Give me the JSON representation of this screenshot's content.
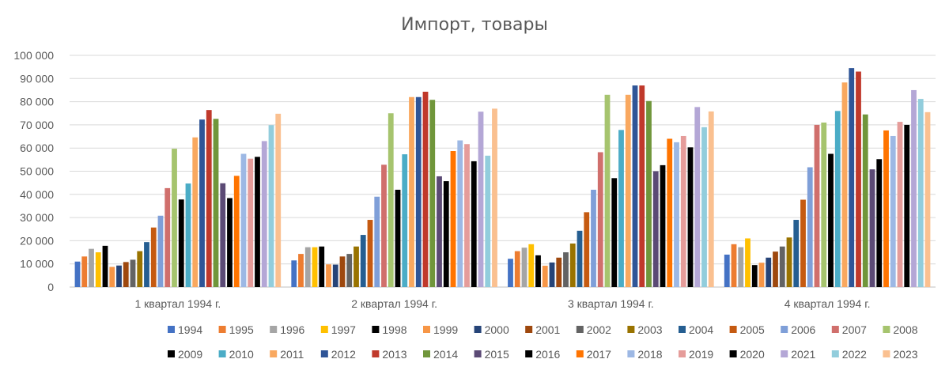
{
  "chart_data": {
    "type": "bar",
    "title": "Импорт, товары",
    "xlabel": "",
    "ylabel": "",
    "ylim": [
      0,
      100000
    ],
    "yticks": [
      0,
      10000,
      20000,
      30000,
      40000,
      50000,
      60000,
      70000,
      80000,
      90000,
      100000
    ],
    "ytick_labels": [
      "0",
      "10 000",
      "20 000",
      "30 000",
      "40 000",
      "50 000",
      "60 000",
      "70 000",
      "80 000",
      "90 000",
      "100 000"
    ],
    "grid": true,
    "legend_position": "bottom",
    "categories": [
      "1 квартал 1994 г.",
      "2 квартал 1994 г.",
      "3 квартал 1994 г.",
      "4 квартал 1994 г."
    ],
    "series": [
      {
        "name": "1994",
        "color": "#4472C4",
        "values": [
          11000,
          11500,
          12200,
          14000
        ]
      },
      {
        "name": "1995",
        "color": "#ED7D31",
        "values": [
          13200,
          14300,
          15500,
          18500
        ]
      },
      {
        "name": "1996",
        "color": "#A5A5A5",
        "values": [
          16500,
          17200,
          17000,
          17200
        ]
      },
      {
        "name": "1997",
        "color": "#FFC000",
        "values": [
          15000,
          17200,
          18500,
          21000
        ]
      },
      {
        "name": "1998",
        "color": "#000000",
        "values": [
          17800,
          17500,
          13700,
          9500
        ]
      },
      {
        "name": "1999",
        "color": "#F79646",
        "values": [
          8700,
          9800,
          9200,
          10500
        ]
      },
      {
        "name": "2000",
        "color": "#264478",
        "values": [
          9300,
          9700,
          10600,
          12700
        ]
      },
      {
        "name": "2001",
        "color": "#9E480E",
        "values": [
          10800,
          13200,
          12700,
          15300
        ]
      },
      {
        "name": "2002",
        "color": "#636363",
        "values": [
          11800,
          14300,
          15000,
          17500
        ]
      },
      {
        "name": "2003",
        "color": "#997300",
        "values": [
          15500,
          17500,
          18800,
          21400
        ]
      },
      {
        "name": "2004",
        "color": "#255E91",
        "values": [
          19400,
          22500,
          24300,
          29000
        ]
      },
      {
        "name": "2005",
        "color": "#C55A11",
        "values": [
          25700,
          29000,
          32300,
          37700
        ]
      },
      {
        "name": "2006",
        "color": "#7F9FD8",
        "values": [
          30800,
          39000,
          42000,
          51700
        ]
      },
      {
        "name": "2007",
        "color": "#D06F6C",
        "values": [
          42700,
          52800,
          58200,
          70000
        ]
      },
      {
        "name": "2008",
        "color": "#A6C46E",
        "values": [
          59700,
          75000,
          83000,
          71000
        ]
      },
      {
        "name": "2009",
        "color": "#000000",
        "values": [
          37800,
          42000,
          47000,
          57500
        ]
      },
      {
        "name": "2010",
        "color": "#4BACC6",
        "values": [
          44700,
          57300,
          67800,
          76000
        ]
      },
      {
        "name": "2011",
        "color": "#F9A85F",
        "values": [
          64600,
          82000,
          83000,
          88300
        ]
      },
      {
        "name": "2012",
        "color": "#2F5597",
        "values": [
          72300,
          82000,
          87000,
          94500
        ]
      },
      {
        "name": "2013",
        "color": "#C0392B",
        "values": [
          76400,
          84300,
          87000,
          93000
        ]
      },
      {
        "name": "2014",
        "color": "#70963B",
        "values": [
          72600,
          80800,
          80300,
          74500
        ]
      },
      {
        "name": "2015",
        "color": "#5B4A75",
        "values": [
          44800,
          47800,
          50000,
          50800
        ]
      },
      {
        "name": "2016",
        "color": "#000000",
        "values": [
          38400,
          45700,
          52600,
          55200
        ]
      },
      {
        "name": "2017",
        "color": "#FF7400",
        "values": [
          48000,
          58700,
          64000,
          67600
        ]
      },
      {
        "name": "2018",
        "color": "#9DB8E4",
        "values": [
          57500,
          63300,
          62500,
          65200
        ]
      },
      {
        "name": "2019",
        "color": "#E59C9A",
        "values": [
          55400,
          61700,
          65200,
          71300
        ]
      },
      {
        "name": "2020",
        "color": "#000000",
        "values": [
          56200,
          54300,
          60300,
          70000
        ]
      },
      {
        "name": "2021",
        "color": "#B4A7D6",
        "values": [
          63000,
          75700,
          77700,
          85000
        ]
      },
      {
        "name": "2022",
        "color": "#92CDDC",
        "values": [
          69900,
          56700,
          69000,
          81200
        ]
      },
      {
        "name": "2023",
        "color": "#FAC090",
        "values": [
          74800,
          77000,
          75800,
          75500
        ]
      }
    ]
  }
}
